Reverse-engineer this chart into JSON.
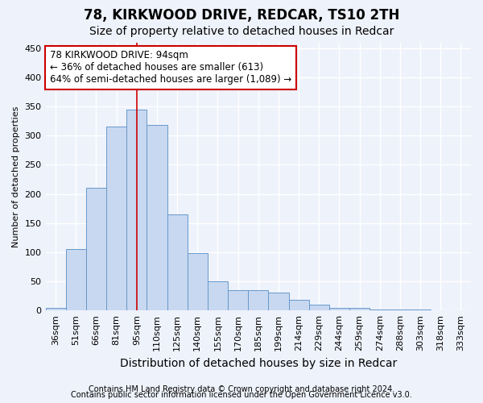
{
  "title1": "78, KIRKWOOD DRIVE, REDCAR, TS10 2TH",
  "title2": "Size of property relative to detached houses in Redcar",
  "xlabel": "Distribution of detached houses by size in Redcar",
  "ylabel": "Number of detached properties",
  "categories": [
    "36sqm",
    "51sqm",
    "66sqm",
    "81sqm",
    "95sqm",
    "110sqm",
    "125sqm",
    "140sqm",
    "155sqm",
    "170sqm",
    "185sqm",
    "199sqm",
    "214sqm",
    "229sqm",
    "244sqm",
    "259sqm",
    "274sqm",
    "288sqm",
    "303sqm",
    "318sqm",
    "333sqm"
  ],
  "values": [
    5,
    105,
    210,
    315,
    345,
    318,
    165,
    98,
    50,
    35,
    35,
    30,
    18,
    10,
    5,
    5,
    2,
    1,
    1,
    0,
    0
  ],
  "bar_color": "#c8d8f0",
  "bar_edge_color": "#6699cc",
  "vline_x_index": 4,
  "vline_color": "#cc0000",
  "annotation_line1": "78 KIRKWOOD DRIVE: 94sqm",
  "annotation_line2": "← 36% of detached houses are smaller (613)",
  "annotation_line3": "64% of semi-detached houses are larger (1,089) →",
  "annotation_box_color": "white",
  "annotation_box_edge": "#cc0000",
  "ylim": [
    0,
    460
  ],
  "yticks": [
    0,
    50,
    100,
    150,
    200,
    250,
    300,
    350,
    400,
    450
  ],
  "footer1": "Contains HM Land Registry data © Crown copyright and database right 2024.",
  "footer2": "Contains public sector information licensed under the Open Government Licence v3.0.",
  "background_color": "#eef2fb",
  "grid_color": "white",
  "title1_fontsize": 12,
  "title2_fontsize": 10,
  "xlabel_fontsize": 10,
  "ylabel_fontsize": 8,
  "tick_fontsize": 8,
  "annotation_fontsize": 8.5,
  "footer_fontsize": 7
}
